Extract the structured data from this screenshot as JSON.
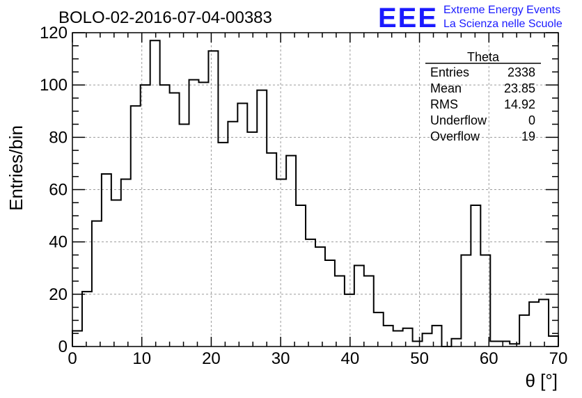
{
  "chart_data": {
    "type": "bar",
    "title": "BOLO-02-2016-07-04-00383",
    "xlabel": "θ [°]",
    "ylabel": "Entries/bin",
    "xlim": [
      0,
      70
    ],
    "ylim": [
      0,
      120
    ],
    "grid": true,
    "bin_width": 1.4,
    "x_ticks": [
      "0",
      "10",
      "20",
      "30",
      "40",
      "50",
      "60",
      "70"
    ],
    "y_ticks": [
      "0",
      "20",
      "40",
      "60",
      "80",
      "100",
      "120"
    ],
    "values": [
      6,
      21,
      48,
      66,
      56,
      64,
      92,
      100,
      117,
      100,
      97,
      85,
      102,
      101,
      113,
      78,
      86,
      93,
      82,
      98,
      74,
      64,
      73,
      54,
      41,
      38,
      33,
      27,
      20,
      31,
      27,
      13,
      8,
      6,
      7,
      2,
      5,
      8,
      0,
      3,
      35,
      54,
      35,
      2,
      2,
      1,
      12,
      17,
      18,
      4
    ],
    "stats_box": {
      "title": "Theta",
      "rows": [
        {
          "label": "Entries",
          "value": "2338"
        },
        {
          "label": "Mean",
          "value": "23.85"
        },
        {
          "label": "RMS",
          "value": "14.92"
        },
        {
          "label": "Underflow",
          "value": "0"
        },
        {
          "label": "Overflow",
          "value": "19"
        }
      ]
    }
  },
  "logo": {
    "text": "EEE",
    "line1": "Extreme Energy Events",
    "line2": "La Scienza nelle Scuole",
    "color": "#1a1aff"
  }
}
